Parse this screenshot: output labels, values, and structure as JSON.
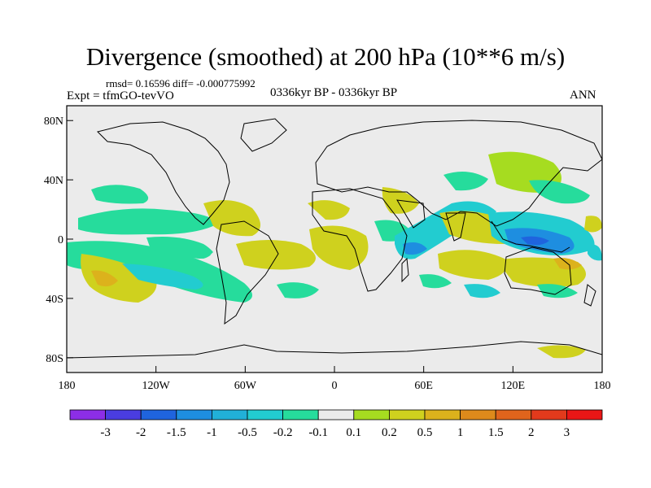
{
  "header": {
    "title": "Divergence (smoothed) at 200 hPa (10**6 m/s)",
    "stats": "rmsd= 0.16596 diff= -0.000775992",
    "experiment": "Expt = tfmGO-tevVO",
    "period": "0336kyr BP - 0336kyr BP",
    "season": "ANN"
  },
  "map": {
    "projection": "cylindrical equidistant",
    "lon_range": [
      -180,
      180
    ],
    "lat_range": [
      -90,
      90
    ],
    "lat_ticks": [
      {
        "value": 80,
        "label": "80N"
      },
      {
        "value": 40,
        "label": "40N"
      },
      {
        "value": 0,
        "label": "0"
      },
      {
        "value": -40,
        "label": "40S"
      },
      {
        "value": -80,
        "label": "80S"
      }
    ],
    "lon_ticks": [
      {
        "value": -180,
        "label": "180"
      },
      {
        "value": -120,
        "label": "120W"
      },
      {
        "value": -60,
        "label": "60W"
      },
      {
        "value": 0,
        "label": "0"
      },
      {
        "value": 60,
        "label": "60E"
      },
      {
        "value": 120,
        "label": "120E"
      },
      {
        "value": 180,
        "label": "180"
      }
    ],
    "background_color": "#ebebeb"
  },
  "colorbar": {
    "colors": [
      "#8c2ee6",
      "#4a3de0",
      "#1f64de",
      "#1e8ee0",
      "#21b0d8",
      "#22ccd0",
      "#26dc9c",
      "#ebebeb",
      "#a6dc20",
      "#cfd11e",
      "#dcb21c",
      "#de8a1b",
      "#e0641c",
      "#e23a1c",
      "#ea1616"
    ],
    "labels": [
      "-3",
      "-2",
      "-1.5",
      "-1",
      "-0.5",
      "-0.2",
      "-0.1",
      "0.1",
      "0.2",
      "0.5",
      "1",
      "1.5",
      "2",
      "3"
    ]
  }
}
